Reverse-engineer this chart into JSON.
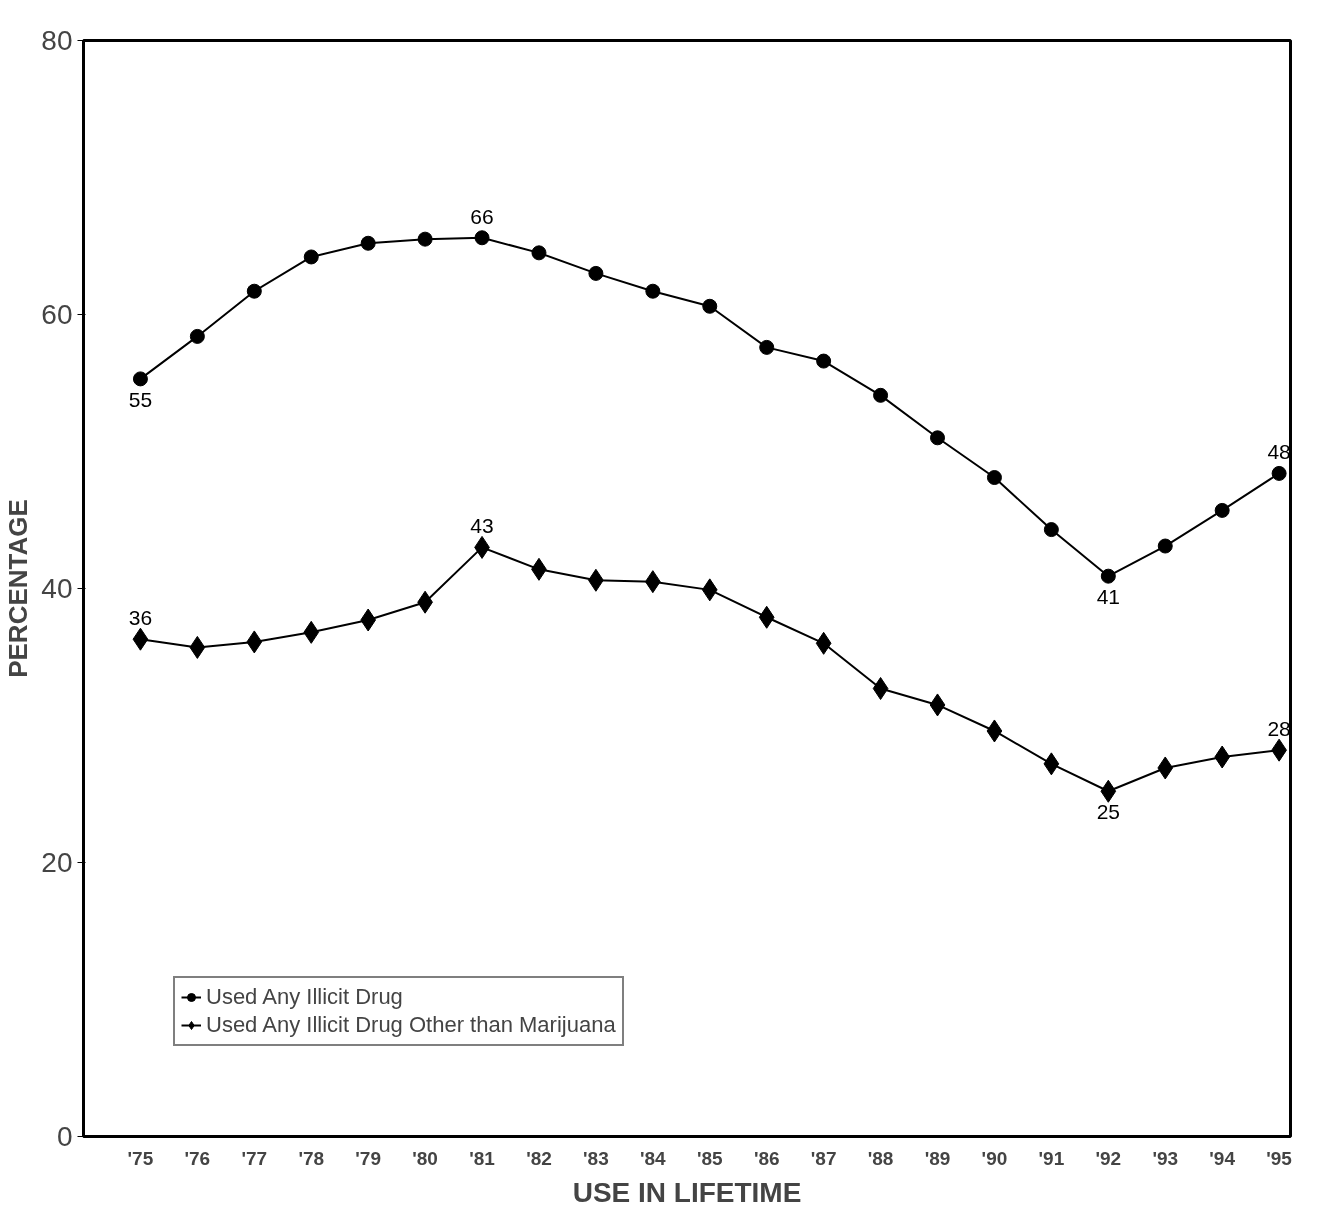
{
  "chart_data": {
    "type": "line",
    "xlabel": "USE IN LIFETIME",
    "ylabel": "PERCENTAGE",
    "categories": [
      "'75",
      "'76",
      "'77",
      "'78",
      "'79",
      "'80",
      "'81",
      "'82",
      "'83",
      "'84",
      "'85",
      "'86",
      "'87",
      "'88",
      "'89",
      "'90",
      "'91",
      "'92",
      "'93",
      "'94",
      "'95"
    ],
    "ylim": [
      0,
      80
    ],
    "yticks": [
      0,
      20,
      40,
      60,
      80
    ],
    "grid": false,
    "legend": "bottom left",
    "line_style": "solid",
    "series": [
      {
        "name": "Used Any Illicit Drug",
        "color": "#000000",
        "marker": "circle",
        "values": [
          55.3,
          58.4,
          61.7,
          64.2,
          65.2,
          65.5,
          65.6,
          64.5,
          63.0,
          61.7,
          60.6,
          57.6,
          56.6,
          54.1,
          51.0,
          48.1,
          44.3,
          40.9,
          43.1,
          45.7,
          48.4
        ],
        "value_labels": [
          "55",
          null,
          null,
          null,
          null,
          null,
          "66",
          null,
          null,
          null,
          null,
          null,
          null,
          null,
          null,
          null,
          null,
          "41",
          null,
          null,
          "48"
        ]
      },
      {
        "name": "Used Any Illicit Drug Other than Marijuana",
        "color": "#000000",
        "marker": "diamond",
        "values": [
          36.3,
          35.7,
          36.1,
          36.8,
          37.7,
          39.0,
          43.0,
          41.4,
          40.6,
          40.5,
          39.9,
          37.9,
          36.0,
          32.7,
          31.5,
          29.6,
          27.2,
          25.2,
          26.9,
          27.7,
          28.2
        ],
        "value_labels": [
          "36",
          null,
          null,
          null,
          null,
          null,
          "43",
          null,
          null,
          null,
          null,
          null,
          null,
          null,
          null,
          null,
          null,
          "25",
          null,
          null,
          "28"
        ]
      }
    ]
  }
}
